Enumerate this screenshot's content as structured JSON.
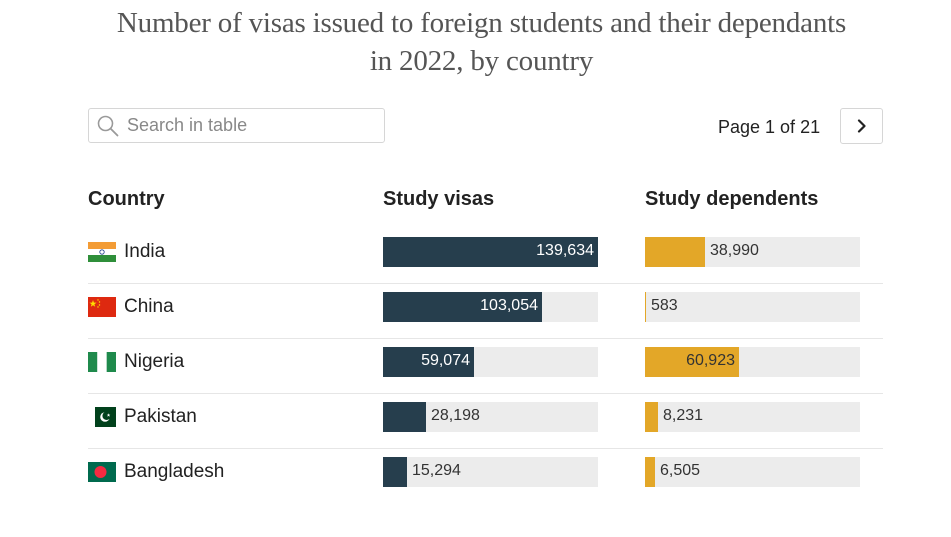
{
  "title": {
    "line1": "Number of visas issued to foreign students and their dependants",
    "line2": "in 2022, by country"
  },
  "search": {
    "placeholder": "Search in table",
    "value": ""
  },
  "pager": {
    "text": "Page 1 of 21"
  },
  "columns": {
    "country": "Country",
    "study": "Study visas",
    "dependents": "Study dependents"
  },
  "colors": {
    "study": "#263e4d",
    "dependents": "#e3a728",
    "track": "#ececec"
  },
  "scale_max": 139634,
  "rows": [
    {
      "country": "India",
      "flag": "india-flag-icon",
      "study": 139634,
      "study_label": "139,634",
      "dependents": 38990,
      "dependents_label": "38,990"
    },
    {
      "country": "China",
      "flag": "china-flag-icon",
      "study": 103054,
      "study_label": "103,054",
      "dependents": 583,
      "dependents_label": "583"
    },
    {
      "country": "Nigeria",
      "flag": "nigeria-flag-icon",
      "study": 59074,
      "study_label": "59,074",
      "dependents": 60923,
      "dependents_label": "60,923"
    },
    {
      "country": "Pakistan",
      "flag": "pakistan-flag-icon",
      "study": 28198,
      "study_label": "28,198",
      "dependents": 8231,
      "dependents_label": "8,231"
    },
    {
      "country": "Bangladesh",
      "flag": "bangladesh-flag-icon",
      "study": 15294,
      "study_label": "15,294",
      "dependents": 6505,
      "dependents_label": "6,505"
    }
  ]
}
